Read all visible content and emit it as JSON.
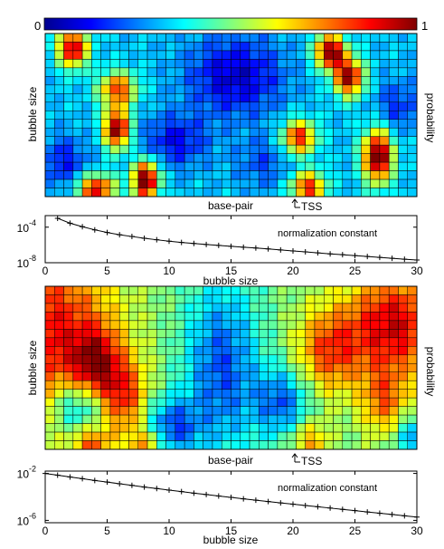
{
  "colorbar": {
    "min_label": "0",
    "max_label": "1",
    "colormap": [
      "#00008f",
      "#0000ff",
      "#0080ff",
      "#00ffff",
      "#80ff80",
      "#ffff00",
      "#ff8000",
      "#ff0000",
      "#800000"
    ]
  },
  "chart_data": [
    {
      "type": "heatmap",
      "ylabel": "bubble size",
      "xlabel": "base-pair",
      "right_label": "probability",
      "annotation": "TSS",
      "zlim": [
        0,
        1
      ],
      "grid_columns": 40,
      "grid_rows": 19,
      "base_level": 0.32,
      "hotspots": [
        {
          "cx": 2.5,
          "cy": 1.2,
          "w": 1.6,
          "h": 2.2,
          "v": 0.65
        },
        {
          "cx": 7.2,
          "cy": 10.6,
          "w": 1.4,
          "h": 2.3,
          "v": 0.7
        },
        {
          "cx": 7.3,
          "cy": 6.0,
          "w": 2.0,
          "h": 2.0,
          "v": 0.5
        },
        {
          "cx": 10.3,
          "cy": 16.6,
          "w": 1.4,
          "h": 2.2,
          "v": 0.75
        },
        {
          "cx": 5.0,
          "cy": 17.6,
          "w": 2.0,
          "h": 1.6,
          "v": 0.6
        },
        {
          "cx": 30.2,
          "cy": 1.6,
          "w": 1.6,
          "h": 2.0,
          "v": 0.7
        },
        {
          "cx": 32.2,
          "cy": 4.6,
          "w": 1.6,
          "h": 2.2,
          "v": 0.65
        },
        {
          "cx": 26.8,
          "cy": 11.6,
          "w": 1.8,
          "h": 2.0,
          "v": 0.55
        },
        {
          "cx": 35.3,
          "cy": 13.8,
          "w": 1.6,
          "h": 3.0,
          "v": 0.75
        },
        {
          "cx": 27.8,
          "cy": 17.4,
          "w": 1.8,
          "h": 1.8,
          "v": 0.55
        },
        {
          "cx": 20.0,
          "cy": 4.5,
          "w": 5.0,
          "h": 4.5,
          "v": -0.25
        },
        {
          "cx": 13.5,
          "cy": 12.0,
          "w": 3.5,
          "h": 3.0,
          "v": -0.2
        },
        {
          "cx": 1.5,
          "cy": 14.5,
          "w": 2.5,
          "h": 3.0,
          "v": -0.18
        },
        {
          "cx": 37.5,
          "cy": 8.0,
          "w": 2.5,
          "h": 3.0,
          "v": -0.15
        },
        {
          "cx": 23.0,
          "cy": 14.5,
          "w": 3.0,
          "h": 3.0,
          "v": -0.12
        }
      ]
    },
    {
      "type": "line",
      "title": "normalization constant",
      "xlabel": "bubble size",
      "xlim": [
        0,
        30
      ],
      "xticks": [
        0,
        5,
        10,
        15,
        20,
        25,
        30
      ],
      "ylim_log10": [
        -8,
        -2.7
      ],
      "yticks": [
        {
          "label": "10",
          "exp": "-4",
          "log": -4
        },
        {
          "label": "10",
          "exp": "-8",
          "log": -8
        }
      ],
      "x": [
        1,
        2,
        3,
        4,
        5,
        6,
        7,
        8,
        9,
        10,
        11,
        12,
        13,
        14,
        15,
        16,
        17,
        18,
        19,
        20,
        21,
        22,
        23,
        24,
        25,
        26,
        27,
        28,
        29,
        30
      ],
      "log10_y": [
        -3.0,
        -3.55,
        -3.95,
        -4.3,
        -4.6,
        -4.85,
        -5.05,
        -5.25,
        -5.42,
        -5.58,
        -5.72,
        -5.84,
        -5.95,
        -6.05,
        -6.15,
        -6.25,
        -6.35,
        -6.45,
        -6.56,
        -6.67,
        -6.78,
        -6.89,
        -7.0,
        -7.1,
        -7.2,
        -7.3,
        -7.4,
        -7.5,
        -7.6,
        -7.7
      ]
    },
    {
      "type": "heatmap",
      "ylabel": "bubble size",
      "xlabel": "base-pair",
      "right_label": "probability",
      "annotation": "TSS",
      "zlim": [
        0,
        1
      ],
      "grid_columns": 40,
      "grid_rows": 19,
      "base_level": 0.5,
      "hotspots": [
        {
          "cx": 0.0,
          "cy": 5.0,
          "w": 7.0,
          "h": 10.0,
          "v": 0.38
        },
        {
          "cx": 5.0,
          "cy": 8.5,
          "w": 2.5,
          "h": 4.0,
          "v": 0.32
        },
        {
          "cx": 8.0,
          "cy": 12.5,
          "w": 2.5,
          "h": 4.5,
          "v": 0.3
        },
        {
          "cx": 4.5,
          "cy": 18.0,
          "w": 2.0,
          "h": 2.0,
          "v": 0.25
        },
        {
          "cx": 10.5,
          "cy": 18.0,
          "w": 2.0,
          "h": 2.0,
          "v": 0.25
        },
        {
          "cx": 37.0,
          "cy": 4.0,
          "w": 5.0,
          "h": 6.0,
          "v": 0.42
        },
        {
          "cx": 30.0,
          "cy": 7.0,
          "w": 3.5,
          "h": 5.0,
          "v": 0.3
        },
        {
          "cx": 36.0,
          "cy": 13.0,
          "w": 2.5,
          "h": 4.0,
          "v": 0.25
        },
        {
          "cx": 28.0,
          "cy": 17.5,
          "w": 2.0,
          "h": 2.5,
          "v": 0.22
        },
        {
          "cx": 18.5,
          "cy": 9.0,
          "w": 4.0,
          "h": 10.0,
          "v": -0.3
        },
        {
          "cx": 13.0,
          "cy": 16.0,
          "w": 3.0,
          "h": 3.5,
          "v": -0.3
        },
        {
          "cx": 3.0,
          "cy": 13.5,
          "w": 3.0,
          "h": 3.0,
          "v": -0.28
        },
        {
          "cx": 25.0,
          "cy": 13.0,
          "w": 3.0,
          "h": 4.0,
          "v": -0.28
        },
        {
          "cx": 39.0,
          "cy": 17.0,
          "w": 2.0,
          "h": 2.5,
          "v": -0.22
        }
      ]
    },
    {
      "type": "line",
      "title": "normalization constant",
      "xlabel": "bubble size",
      "xlim": [
        0,
        30
      ],
      "xticks": [
        0,
        5,
        10,
        15,
        20,
        25,
        30
      ],
      "ylim_log10": [
        -6.2,
        -1.8
      ],
      "yticks": [
        {
          "label": "10",
          "exp": "-2",
          "log": -2
        },
        {
          "label": "10",
          "exp": "-6",
          "log": -6
        }
      ],
      "x": [
        0,
        1,
        2,
        3,
        4,
        5,
        6,
        7,
        8,
        9,
        10,
        11,
        12,
        13,
        14,
        15,
        16,
        17,
        18,
        19,
        20,
        21,
        22,
        23,
        24,
        25,
        26,
        27,
        28,
        29,
        30
      ],
      "log10_y": [
        -2.0,
        -2.15,
        -2.3,
        -2.45,
        -2.6,
        -2.74,
        -2.88,
        -3.02,
        -3.16,
        -3.29,
        -3.42,
        -3.55,
        -3.68,
        -3.8,
        -3.92,
        -4.04,
        -4.16,
        -4.28,
        -4.4,
        -4.51,
        -4.62,
        -4.73,
        -4.84,
        -4.95,
        -5.06,
        -5.17,
        -5.28,
        -5.39,
        -5.5,
        -5.61,
        -5.72
      ]
    }
  ]
}
